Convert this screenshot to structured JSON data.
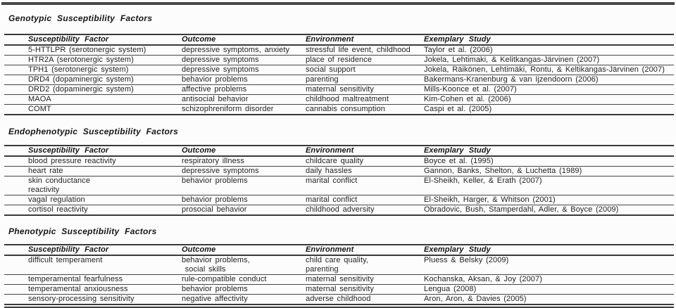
{
  "sections": [
    {
      "title": "Genotypic Susceptibility Factors",
      "columns": [
        "Susceptibility Factor",
        "Outcome",
        "Environment",
        "Exemplary Study"
      ],
      "rows": [
        [
          "5-HTTLPR (serotonergic system)",
          "depressive symptoms, anxiety",
          "stressful life event, childhood",
          "Taylor et al. (2006)"
        ],
        [
          "HTR2A (serotonergic system)",
          "depressive symptoms",
          "place of residence",
          "Jokela, Lehtimaki, & Kelitkangas-Järvinen (2007)"
        ],
        [
          "TPH1 (serotonergic system)",
          "depressive symptoms",
          "social support",
          "Jokela, Räikönen, Lehtimäki, Rontu, & Keltikangas-Järvinen (2007)"
        ],
        [
          "DRD4 (dopaminergic system)",
          "behavior problems",
          "parenting",
          "Bakermans-Kranenburg & van Ijzendoorn (2006)"
        ],
        [
          "DRD2 (dopaminergic system)",
          "affective problems",
          "maternal sensitivity",
          "Mills-Koonce et al. (2007)"
        ],
        [
          "MAOA",
          "antisocial behavior",
          "childhood maltreatment",
          "Kim-Cohen et al. (2006)"
        ],
        [
          "COMT",
          "schizophreniform disorder",
          "cannabis consumption",
          "Caspi et al. (2005)"
        ]
      ]
    },
    {
      "title": "Endophenotypic Susceptibility Factors",
      "columns": [
        "Susceptibility Factor",
        "Outcome",
        "Environment",
        "Exemplary Study"
      ],
      "rows": [
        [
          "blood pressure reactivity",
          "respiratory illness",
          "childcare quality",
          "Boyce et al. (1995)"
        ],
        [
          "heart rate",
          "depressive symptoms",
          "daily hassles",
          "Gannon, Banks, Shelton, & Luchetta (1989)"
        ],
        [
          "skin conductance\nreactivity",
          "behavior problems",
          "marital conflict",
          "El-Sheikh, Keller, & Erath (2007)"
        ],
        [
          "vagal regulation",
          "behavior problems",
          "marital conflict",
          "El-Sheikh, Harger, & Whitson (2001)"
        ],
        [
          "cortisol reactivity",
          "prosocial behavior",
          "childhood adversity",
          "Obradovic, Bush, Stamperdahl, Adler, & Boyce (2009)"
        ]
      ]
    },
    {
      "title": "Phenotypic Susceptibility Factors",
      "columns": [
        "Susceptibility Factor",
        "Outcome",
        "Environment",
        "Exemplary Study"
      ],
      "rows": [
        [
          "difficult temperament",
          "behavior problems,\n social skills",
          "child care quality,\nparenting",
          "Pluess & Belsky (2009)"
        ],
        [
          "temperamental fearfulness",
          "rule-compatible conduct",
          "maternal sensitivity",
          "Kochanska, Aksan, & Joy (2007)"
        ],
        [
          "temperamental anxiousness",
          "behavior problems",
          "maternal sensitivity",
          "Lengua (2008)"
        ],
        [
          "sensory-processing sensitivity",
          "negative affectivity",
          "adverse childhood",
          "Aron, Aron, & Davies (2005)"
        ]
      ]
    }
  ]
}
